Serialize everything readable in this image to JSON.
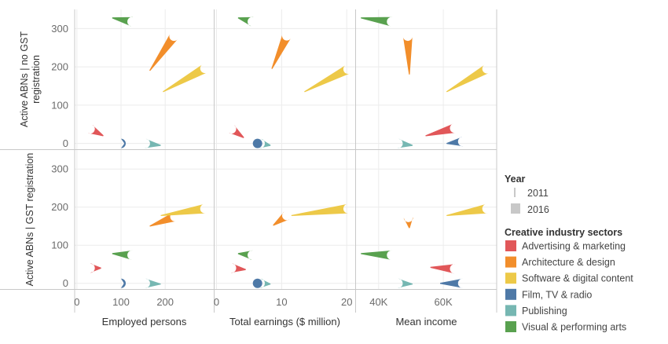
{
  "chart_data": {
    "type": "scatter",
    "mark_shape": "tapered line (thin at 2011, thick at 2016)",
    "grid": true,
    "legend_placement": "right",
    "rows": [
      {
        "id": "no_gst",
        "title_lines": [
          "Active ABNs | no GST",
          "registration"
        ]
      },
      {
        "id": "gst",
        "title_lines": [
          "Active ABNs | GST registration"
        ]
      }
    ],
    "y_ticks": [
      0,
      100,
      200,
      300
    ],
    "ylim": [
      -15,
      350
    ],
    "columns": [
      {
        "id": "emp",
        "xlabel": "Employed persons",
        "xlim": [
          -5,
          310
        ],
        "ticks": [
          {
            "v": 0,
            "label": "0"
          },
          {
            "v": 100,
            "label": "100"
          },
          {
            "v": 200,
            "label": "200"
          }
        ]
      },
      {
        "id": "earn",
        "xlabel": "Total earnings ($ million)",
        "xlim": [
          -0.3,
          21.3
        ],
        "ticks": [
          {
            "v": 0,
            "label": "0"
          },
          {
            "v": 10,
            "label": "10"
          },
          {
            "v": 20,
            "label": "20"
          }
        ]
      },
      {
        "id": "inc",
        "xlabel": "Mean income",
        "xlim": [
          33000,
          76500
        ],
        "ticks": [
          {
            "v": 40000,
            "label": "40K"
          },
          {
            "v": 60000,
            "label": "60K"
          }
        ]
      }
    ],
    "legend": {
      "year_title": "Year",
      "years": [
        "2011",
        "2016"
      ],
      "sector_title": "Creative industry sectors"
    },
    "series": [
      {
        "name": "Advertising & marketing",
        "color": "#e15759",
        "points": {
          "no_gst": {
            "emp": [
              [
                60,
                20
              ],
              [
                30,
                38
              ]
            ],
            "earn": [
              [
                4.2,
                15
              ],
              [
                2.3,
                38
              ]
            ],
            "inc": [
              [
                54500,
                20
              ],
              [
                63500,
                40
              ]
            ]
          },
          "gst": {
            "emp": [
              [
                55,
                40
              ],
              [
                30,
                40
              ]
            ],
            "earn": [
              [
                4.5,
                36
              ],
              [
                2.3,
                40
              ]
            ],
            "inc": [
              [
                56000,
                42
              ],
              [
                63500,
                38
              ]
            ]
          }
        }
      },
      {
        "name": "Architecture & design",
        "color": "#f28e2b",
        "points": {
          "no_gst": {
            "emp": [
              [
                165,
                190
              ],
              [
                220,
                280
              ]
            ],
            "earn": [
              [
                8.5,
                195
              ],
              [
                10.8,
                281
              ]
            ],
            "inc": [
              [
                49500,
                180
              ],
              [
                49000,
                280
              ]
            ]
          },
          "gst": {
            "emp": [
              [
                165,
                150
              ],
              [
                222,
                175
              ]
            ],
            "earn": [
              [
                8.7,
                152
              ],
              [
                10.8,
                178
              ]
            ],
            "inc": [
              [
                49500,
                145
              ],
              [
                49200,
                173
              ]
            ]
          }
        }
      },
      {
        "name": "Software & digital content",
        "color": "#edc948",
        "points": {
          "no_gst": {
            "emp": [
              [
                195,
                135
              ],
              [
                290,
                196
              ]
            ],
            "earn": [
              [
                13.5,
                135
              ],
              [
                20.2,
                194
              ]
            ],
            "inc": [
              [
                61000,
                135
              ],
              [
                73500,
                195
              ]
            ]
          },
          "gst": {
            "emp": [
              [
                190,
                178
              ],
              [
                290,
                196
              ]
            ],
            "earn": [
              [
                11.5,
                178
              ],
              [
                20.2,
                196
              ]
            ],
            "inc": [
              [
                61000,
                178
              ],
              [
                73500,
                196
              ]
            ]
          }
        }
      },
      {
        "name": "Film, TV & radio",
        "color": "#4e79a7",
        "points": {
          "no_gst": {
            "emp": [
              [
                107,
                0
              ],
              [
                100,
                0
              ]
            ],
            "earn": [
              [
                6.3,
                0
              ],
              [
                6.3,
                0
              ]
            ],
            "inc": [
              [
                61000,
                0
              ],
              [
                66000,
                5
              ]
            ]
          },
          "gst": {
            "emp": [
              [
                106,
                0
              ],
              [
                100,
                0
              ]
            ],
            "earn": [
              [
                6.3,
                0
              ],
              [
                6.3,
                0
              ]
            ],
            "inc": [
              [
                59000,
                0
              ],
              [
                66000,
                0
              ]
            ]
          }
        }
      },
      {
        "name": "Publishing",
        "color": "#76b7b2",
        "points": {
          "no_gst": {
            "emp": [
              [
                190,
                -5
              ],
              [
                155,
                0
              ]
            ],
            "earn": [
              [
                8.3,
                -5
              ],
              [
                6.7,
                0
              ]
            ],
            "inc": [
              [
                50500,
                -5
              ],
              [
                46000,
                0
              ]
            ]
          },
          "gst": {
            "emp": [
              [
                190,
                -2
              ],
              [
                155,
                0
              ]
            ],
            "earn": [
              [
                8.3,
                -2
              ],
              [
                6.7,
                0
              ]
            ],
            "inc": [
              [
                50500,
                -2
              ],
              [
                46000,
                0
              ]
            ]
          }
        }
      },
      {
        "name": "Visual & performing arts",
        "color": "#59a14f",
        "points": {
          "no_gst": {
            "emp": [
              [
                80,
                328
              ],
              [
                125,
                318
              ]
            ],
            "earn": [
              [
                3.3,
                328
              ],
              [
                5.5,
                318
              ]
            ],
            "inc": [
              [
                34500,
                328
              ],
              [
                44000,
                318
              ]
            ]
          },
          "gst": {
            "emp": [
              [
                80,
                78
              ],
              [
                125,
                74
              ]
            ],
            "earn": [
              [
                3.3,
                78
              ],
              [
                5.5,
                74
              ]
            ],
            "inc": [
              [
                34500,
                78
              ],
              [
                44000,
                74
              ]
            ]
          }
        }
      }
    ]
  }
}
